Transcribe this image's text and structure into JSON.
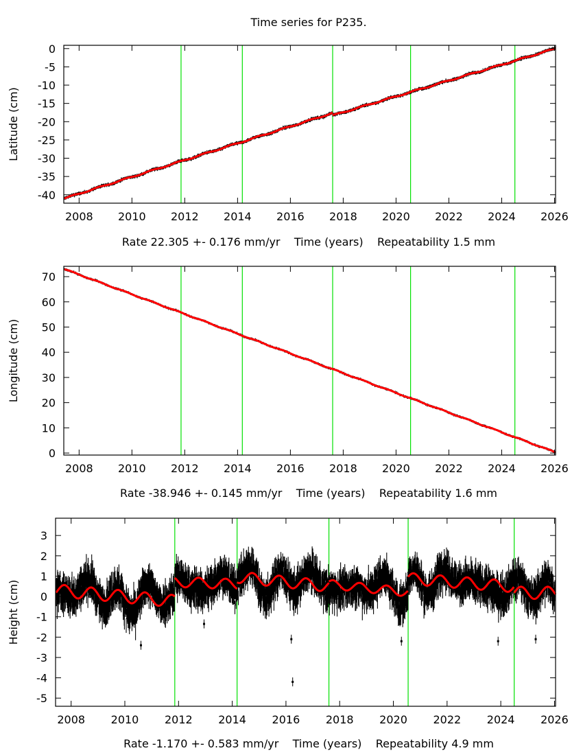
{
  "title": "Time series for P235.",
  "colors": {
    "observed": "#000000",
    "model": "#ff0000",
    "event_lines": "#00e000",
    "frame": "#000000"
  },
  "chart_data": [
    {
      "type": "scatter",
      "ylabel": "Latitude (cm)",
      "xlabel_parts": [
        "Rate 22.305 +- 0.176 mm/yr",
        "Time (years)",
        "Repeatability 1.5 mm"
      ],
      "xlim": [
        2007.42,
        2026.04
      ],
      "ylim": [
        -42.3,
        0.9
      ],
      "xticks": [
        2008,
        2010,
        2012,
        2014,
        2016,
        2018,
        2020,
        2022,
        2024,
        2026
      ],
      "yticks": [
        0,
        -5,
        -10,
        -15,
        -20,
        -25,
        -30,
        -35,
        -40
      ],
      "event_lines": [
        2011.86,
        2014.18,
        2017.6,
        2020.55,
        2024.5
      ],
      "observed_spread_cm": 0.35,
      "model_segments": [
        {
          "start": 2007.44,
          "end": 2017.6,
          "value_at_start": -41.0,
          "rate_cm_per_yr": 2.3,
          "annual_amplitude": 0.15
        },
        {
          "start": 2017.6,
          "end": 2026.04,
          "value_at_start": -18.3,
          "rate_cm_per_yr": 2.17,
          "annual_amplitude": 0.15
        }
      ],
      "outliers": []
    },
    {
      "type": "scatter",
      "ylabel": "Longitude (cm)",
      "xlabel_parts": [
        "Rate -38.946 +- 0.145 mm/yr",
        "Time (years)",
        "Repeatability 1.6 mm"
      ],
      "xlim": [
        2007.42,
        2026.04
      ],
      "ylim": [
        -0.8,
        74.1
      ],
      "xticks": [
        2008,
        2010,
        2012,
        2014,
        2016,
        2018,
        2020,
        2022,
        2024,
        2026
      ],
      "yticks": [
        0,
        10,
        20,
        30,
        40,
        50,
        60,
        70
      ],
      "event_lines": [
        2011.86,
        2014.18,
        2017.6,
        2020.55,
        2024.5
      ],
      "observed_spread_cm": 0.35,
      "model_segments": [
        {
          "start": 2007.44,
          "end": 2026.04,
          "value_at_start": 73.0,
          "rate_cm_per_yr": -3.91,
          "annual_amplitude": 0.15
        }
      ],
      "outliers": []
    },
    {
      "type": "scatter",
      "ylabel": "Height (cm)",
      "xlabel_parts": [
        "Rate -1.170 +- 0.583 mm/yr",
        "Time (years)",
        "Repeatability 4.9 mm"
      ],
      "xlim": [
        2007.42,
        2026.04
      ],
      "ylim": [
        -5.4,
        3.85
      ],
      "xticks": [
        2008,
        2010,
        2012,
        2014,
        2016,
        2018,
        2020,
        2022,
        2024,
        2026
      ],
      "yticks": [
        3,
        2,
        1,
        0,
        -1,
        -2,
        -3,
        -4,
        -5
      ],
      "event_lines": [
        2011.86,
        2014.18,
        2017.6,
        2020.55,
        2024.5
      ],
      "observed_spread_cm": 1.0,
      "model_segments": [
        {
          "start": 2007.44,
          "end": 2011.86,
          "value_at_start": 0.3,
          "rate_cm_per_yr": -0.12,
          "annual_amplitude": 0.3
        },
        {
          "start": 2011.86,
          "end": 2014.18,
          "value_at_start": 0.72,
          "rate_cm_per_yr": -0.05,
          "annual_amplitude": 0.25
        },
        {
          "start": 2014.18,
          "end": 2017.6,
          "value_at_start": 0.95,
          "rate_cm_per_yr": -0.13,
          "annual_amplitude": 0.28
        },
        {
          "start": 2017.6,
          "end": 2020.55,
          "value_at_start": 0.6,
          "rate_cm_per_yr": -0.13,
          "annual_amplitude": 0.22
        },
        {
          "start": 2020.55,
          "end": 2024.5,
          "value_at_start": 0.88,
          "rate_cm_per_yr": -0.1,
          "annual_amplitude": 0.28
        },
        {
          "start": 2024.5,
          "end": 2026.04,
          "value_at_start": 0.18,
          "rate_cm_per_yr": 0.0,
          "annual_amplitude": 0.3
        }
      ],
      "outliers": [
        [
          2012.95,
          -1.35
        ],
        [
          2016.2,
          -2.1
        ],
        [
          2016.25,
          -4.2
        ],
        [
          2020.3,
          -2.2
        ],
        [
          2023.9,
          -2.2
        ],
        [
          2010.6,
          -2.4
        ],
        [
          2025.3,
          -2.1
        ]
      ]
    }
  ]
}
